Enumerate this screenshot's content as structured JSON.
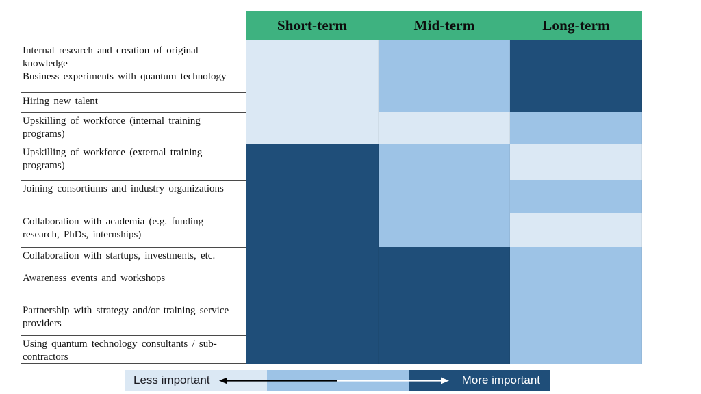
{
  "chart_data": {
    "type": "heatmap",
    "columns": [
      "Short-term",
      "Mid-term",
      "Long-term"
    ],
    "rows": [
      {
        "label": "Internal research and creation of original knowledge",
        "values": [
          1,
          2,
          3
        ]
      },
      {
        "label": "Business experiments with quantum technology",
        "values": [
          1,
          2,
          3
        ]
      },
      {
        "label": "Hiring new talent",
        "values": [
          1,
          2,
          3
        ]
      },
      {
        "label": "Upskilling of workforce (internal training programs)",
        "values": [
          1,
          1,
          2
        ]
      },
      {
        "label": "Upskilling of workforce (external training programs)",
        "values": [
          3,
          2,
          1
        ]
      },
      {
        "label": "Joining consortiums and industry organizations",
        "values": [
          3,
          2,
          2
        ]
      },
      {
        "label": "Collaboration with academia (e.g. funding research, PhDs, internships)",
        "values": [
          3,
          2,
          1
        ]
      },
      {
        "label": "Collaboration with startups, investments, etc.",
        "values": [
          3,
          3,
          2
        ]
      },
      {
        "label": "Awareness events and workshops",
        "values": [
          3,
          3,
          2
        ]
      },
      {
        "label": "Partnership with strategy and/or training service providers",
        "values": [
          3,
          3,
          2
        ]
      },
      {
        "label": "Using quantum technology consultants / sub-contractors",
        "values": [
          3,
          3,
          2
        ]
      }
    ],
    "value_scale": {
      "1": "less important",
      "2": "medium importance",
      "3": "more important"
    },
    "legend": {
      "left_label": "Less important",
      "right_label": "More important"
    },
    "legend_position": "bottom",
    "grid": "row lines on label column only"
  },
  "colors": {
    "header_green": "#3eb280",
    "level_1": "#dbe8f4",
    "level_2": "#9dc3e6",
    "level_3": "#1f4e79",
    "row_line": "#4a4a4a",
    "legend_text_dark": "#1b1b22",
    "legend_text_light": "#ffffff",
    "arrow_left": "#000000",
    "arrow_right": "#ffffff"
  }
}
